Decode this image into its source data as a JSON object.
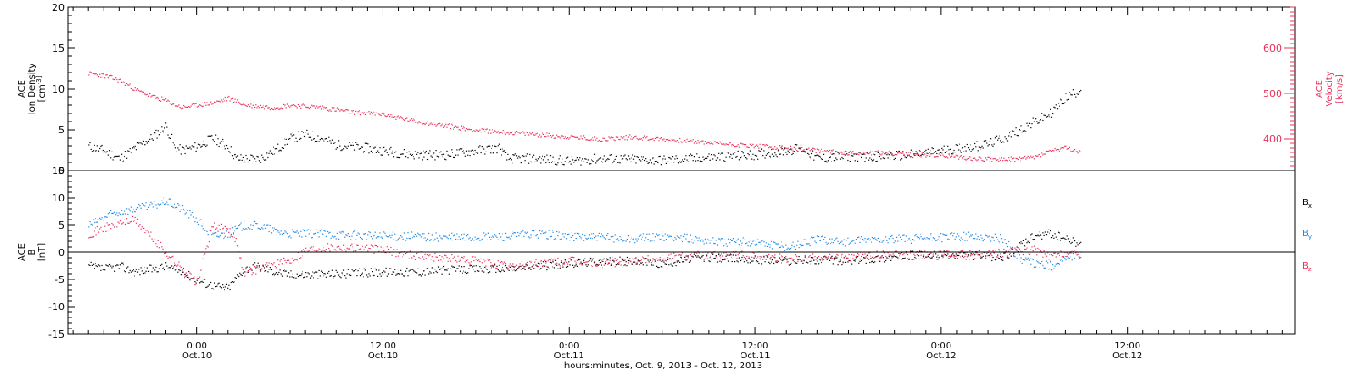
{
  "colors": {
    "black": "#000000",
    "red": "#e8305a",
    "blue": "#1e88e5"
  },
  "chart_data": [
    {
      "type": "scatter",
      "panel": "top",
      "ylabel_left": [
        "ACE",
        "Ion Density",
        "[cm^-3]"
      ],
      "ylabel_right": [
        "ACE",
        "Velocity",
        "[km/s]"
      ],
      "yticks_left": [
        "20",
        "15",
        "10",
        "5",
        "0"
      ],
      "ylim_left": [
        0,
        20
      ],
      "yticks_right": [
        "600",
        "500",
        "400"
      ],
      "ylim_right": [
        330,
        690
      ],
      "xlim_hours": [
        -7,
        52
      ],
      "series": [
        {
          "side": "left",
          "color": "#000000",
          "values": [
            [
              -7,
              3.0
            ],
            [
              -6,
              2.5
            ],
            [
              -5,
              1.5
            ],
            [
              -4,
              2.8
            ],
            [
              -3,
              4.0
            ],
            [
              -2,
              5.5
            ],
            [
              -1.5,
              3.0
            ],
            [
              -1,
              2.5
            ],
            [
              0,
              3.0
            ],
            [
              1,
              4.0
            ],
            [
              2,
              3.0
            ],
            [
              2.5,
              1.5
            ],
            [
              4,
              1.5
            ],
            [
              5,
              2.5
            ],
            [
              6,
              4.0
            ],
            [
              7,
              4.5
            ],
            [
              8,
              4.0
            ],
            [
              9,
              3.2
            ],
            [
              10,
              3.0
            ],
            [
              12,
              2.5
            ],
            [
              14,
              2.0
            ],
            [
              16,
              2.0
            ],
            [
              18,
              2.5
            ],
            [
              19.5,
              2.8
            ],
            [
              20,
              1.5
            ],
            [
              22,
              1.5
            ],
            [
              24,
              1.2
            ],
            [
              26,
              1.5
            ],
            [
              28,
              1.4
            ],
            [
              30,
              1.3
            ],
            [
              32,
              1.5
            ],
            [
              34,
              1.8
            ],
            [
              36,
              2.0
            ],
            [
              38,
              2.5
            ],
            [
              39,
              2.8
            ],
            [
              40,
              1.5
            ],
            [
              42,
              1.8
            ],
            [
              44,
              1.8
            ],
            [
              46,
              2.0
            ],
            [
              48,
              2.5
            ],
            [
              50,
              3.0
            ],
            [
              51,
              3.3
            ],
            [
              52,
              4.0
            ],
            [
              53,
              5.0
            ],
            [
              54,
              6.0
            ],
            [
              55,
              7.0
            ],
            [
              56,
              9.0
            ],
            [
              57,
              10.0
            ]
          ]
        },
        {
          "side": "right",
          "color": "#e8305a",
          "values": [
            [
              -7,
              545
            ],
            [
              -6,
              540
            ],
            [
              -5,
              530
            ],
            [
              -4,
              510
            ],
            [
              -3,
              495
            ],
            [
              -2,
              485
            ],
            [
              -1,
              470
            ],
            [
              0,
              475
            ],
            [
              1,
              480
            ],
            [
              2,
              490
            ],
            [
              2.5,
              485
            ],
            [
              3,
              475
            ],
            [
              5,
              470
            ],
            [
              6,
              475
            ],
            [
              8,
              470
            ],
            [
              10,
              460
            ],
            [
              12,
              455
            ],
            [
              14,
              440
            ],
            [
              16,
              430
            ],
            [
              18,
              420
            ],
            [
              20,
              415
            ],
            [
              22,
              410
            ],
            [
              24,
              405
            ],
            [
              26,
              400
            ],
            [
              28,
              405
            ],
            [
              30,
              400
            ],
            [
              32,
              395
            ],
            [
              34,
              390
            ],
            [
              36,
              385
            ],
            [
              38,
              380
            ],
            [
              40,
              375
            ],
            [
              42,
              370
            ],
            [
              44,
              370
            ],
            [
              46,
              365
            ],
            [
              48,
              365
            ],
            [
              50,
              358
            ],
            [
              52,
              355
            ],
            [
              54,
              360
            ],
            [
              55,
              375
            ],
            [
              56,
              380
            ],
            [
              57,
              370
            ]
          ]
        }
      ]
    },
    {
      "type": "scatter",
      "panel": "bottom",
      "ylabel_left": [
        "ACE",
        "B",
        "[nT]"
      ],
      "yticks_left": [
        "15",
        "10",
        "5",
        "0",
        "-5",
        "-10",
        "-15"
      ],
      "ylim_left": [
        -15,
        15
      ],
      "xlim_hours": [
        -7,
        52
      ],
      "legend": [
        {
          "label": "B",
          "sub": "x",
          "color": "#000000"
        },
        {
          "label": "B",
          "sub": "y",
          "color": "#1e88e5"
        },
        {
          "label": "B",
          "sub": "z",
          "color": "#e8305a"
        }
      ],
      "series": [
        {
          "name": "Bx",
          "color": "#000000",
          "values": [
            [
              -7,
              -2.5
            ],
            [
              -6,
              -3.0
            ],
            [
              -5,
              -2.5
            ],
            [
              -4,
              -3.5
            ],
            [
              -3,
              -3.0
            ],
            [
              -2,
              -2.5
            ],
            [
              -1,
              -3.5
            ],
            [
              0,
              -5.0
            ],
            [
              1,
              -6.0
            ],
            [
              2,
              -6.5
            ],
            [
              3,
              -3.0
            ],
            [
              4,
              -2.5
            ],
            [
              5,
              -3.5
            ],
            [
              6,
              -4.0
            ],
            [
              8,
              -4.0
            ],
            [
              10,
              -3.8
            ],
            [
              12,
              -3.5
            ],
            [
              14,
              -3.5
            ],
            [
              16,
              -3.2
            ],
            [
              18,
              -3.0
            ],
            [
              20,
              -3.0
            ],
            [
              22,
              -2.5
            ],
            [
              24,
              -2.0
            ],
            [
              26,
              -1.5
            ],
            [
              28,
              -1.5
            ],
            [
              30,
              -2.0
            ],
            [
              32,
              -1.0
            ],
            [
              34,
              -1.0
            ],
            [
              36,
              -1.2
            ],
            [
              38,
              -1.5
            ],
            [
              40,
              -1.3
            ],
            [
              42,
              -1.5
            ],
            [
              44,
              -1.0
            ],
            [
              46,
              -0.5
            ],
            [
              48,
              -0.5
            ],
            [
              50,
              -0.5
            ],
            [
              52,
              -0.8
            ],
            [
              54,
              3.0
            ],
            [
              55,
              3.5
            ],
            [
              56,
              2.5
            ],
            [
              57,
              1.5
            ]
          ]
        },
        {
          "name": "By",
          "color": "#1e88e5",
          "values": [
            [
              -7,
              5.0
            ],
            [
              -6,
              6.5
            ],
            [
              -5,
              7.5
            ],
            [
              -4,
              8.0
            ],
            [
              -3,
              8.5
            ],
            [
              -2,
              9.5
            ],
            [
              -1,
              8.0
            ],
            [
              0,
              6.0
            ],
            [
              1,
              3.0
            ],
            [
              2,
              3.5
            ],
            [
              3,
              5.0
            ],
            [
              4,
              5.0
            ],
            [
              5,
              4.0
            ],
            [
              6,
              3.5
            ],
            [
              8,
              3.5
            ],
            [
              10,
              3.2
            ],
            [
              12,
              3.0
            ],
            [
              14,
              3.0
            ],
            [
              16,
              2.8
            ],
            [
              18,
              2.8
            ],
            [
              20,
              3.0
            ],
            [
              22,
              3.5
            ],
            [
              24,
              3.0
            ],
            [
              26,
              2.8
            ],
            [
              28,
              2.5
            ],
            [
              30,
              3.0
            ],
            [
              32,
              2.5
            ],
            [
              34,
              2.0
            ],
            [
              36,
              2.0
            ],
            [
              38,
              1.0
            ],
            [
              40,
              2.5
            ],
            [
              42,
              2.0
            ],
            [
              44,
              2.5
            ],
            [
              46,
              2.5
            ],
            [
              48,
              2.8
            ],
            [
              50,
              3.0
            ],
            [
              52,
              2.5
            ],
            [
              53,
              -1.0
            ],
            [
              54,
              -2.0
            ],
            [
              55,
              -2.5
            ],
            [
              56,
              -1.0
            ],
            [
              57,
              -0.5
            ]
          ]
        },
        {
          "name": "Bz",
          "color": "#e8305a",
          "values": [
            [
              -7,
              3.5
            ],
            [
              -6,
              4.5
            ],
            [
              -5,
              5.5
            ],
            [
              -4,
              6.0
            ],
            [
              -3,
              3.0
            ],
            [
              -2,
              0.0
            ],
            [
              -1,
              -3.0
            ],
            [
              0,
              -5.5
            ],
            [
              1,
              5.0
            ],
            [
              2,
              4.0
            ],
            [
              2.5,
              2.5
            ],
            [
              3,
              -3.5
            ],
            [
              4,
              -3.0
            ],
            [
              5,
              -2.0
            ],
            [
              6,
              -1.5
            ],
            [
              7,
              0.5
            ],
            [
              8,
              1.0
            ],
            [
              10,
              1.0
            ],
            [
              12,
              0.5
            ],
            [
              14,
              -0.5
            ],
            [
              16,
              -1.0
            ],
            [
              18,
              -1.5
            ],
            [
              20,
              -2.5
            ],
            [
              22,
              -2.0
            ],
            [
              24,
              -1.5
            ],
            [
              26,
              -2.0
            ],
            [
              28,
              -1.5
            ],
            [
              30,
              -1.0
            ],
            [
              32,
              -0.5
            ],
            [
              34,
              -0.5
            ],
            [
              36,
              -0.5
            ],
            [
              38,
              -1.0
            ],
            [
              40,
              -0.8
            ],
            [
              42,
              -1.0
            ],
            [
              44,
              -0.5
            ],
            [
              46,
              -0.5
            ],
            [
              48,
              -0.5
            ],
            [
              50,
              -0.3
            ],
            [
              52,
              0.0
            ],
            [
              54,
              0.5
            ],
            [
              55,
              -1.0
            ],
            [
              56,
              0.0
            ],
            [
              57,
              -0.5
            ]
          ]
        }
      ]
    }
  ],
  "xaxis": {
    "hour_ticks": [
      {
        "hour": 0,
        "line1": "0:00",
        "line2": "Oct.10"
      },
      {
        "hour": 12,
        "line1": "12:00",
        "line2": "Oct.10"
      },
      {
        "hour": 24,
        "line1": "0:00",
        "line2": "Oct.11"
      },
      {
        "hour": 36,
        "line1": "12:00",
        "line2": "Oct.11"
      },
      {
        "hour": 48,
        "line1": "0:00",
        "line2": "Oct.12"
      },
      {
        "hour": 60,
        "line1": "12:00",
        "line2": "Oct.12"
      }
    ],
    "title": "hours:minutes, Oct.  9, 2013 - Oct. 12, 2013",
    "range_hours": [
      -8.3,
      70.8
    ]
  }
}
